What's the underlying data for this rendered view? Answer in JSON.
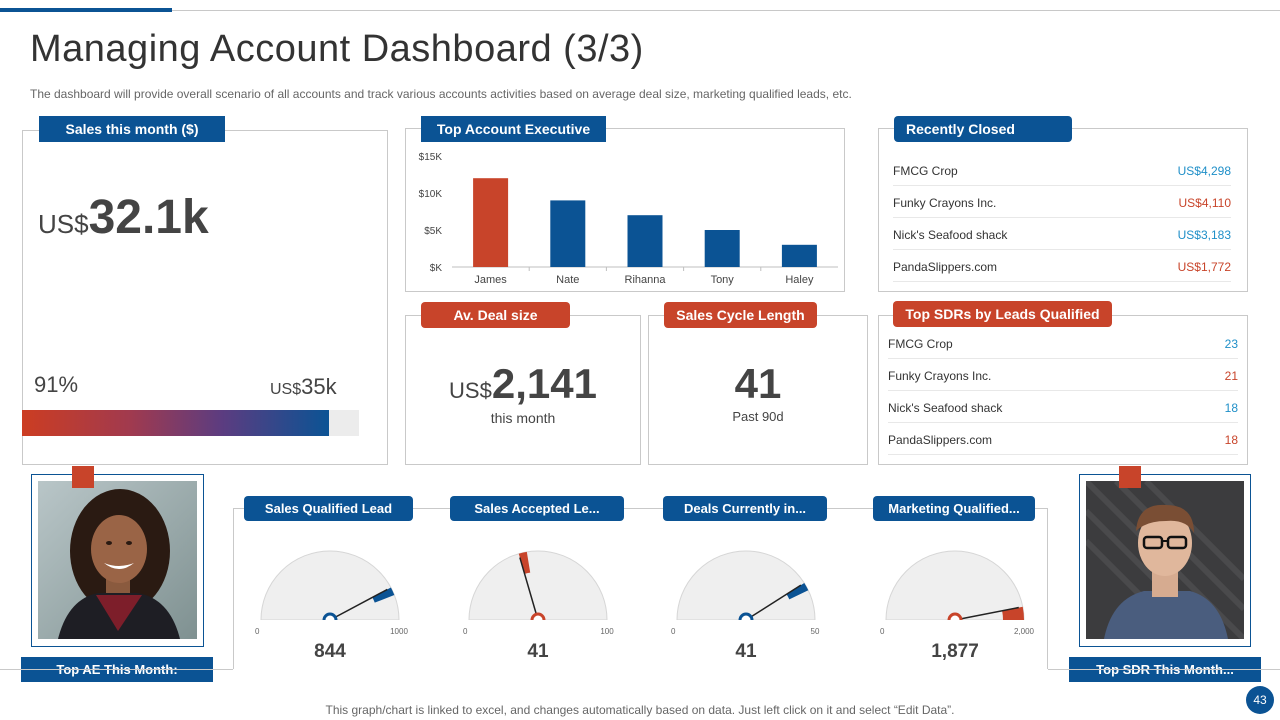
{
  "page": {
    "title": "Managing Account Dashboard (3/3)",
    "subtitle": "The dashboard  will provide  overall  scenario of all accounts and track various  accounts activities based on average  deal size, marketing qualified leads, etc.",
    "footer": "This graph/chart is linked to excel,  and changes automatically based on data. Just left click on it and select “Edit Data”.",
    "page_number": "43"
  },
  "colors": {
    "blue": "#0b5394",
    "red": "#c8442a",
    "light_blue": "#1f8fc8"
  },
  "sales_month": {
    "label": "Sales this month ($)",
    "currency": "US$",
    "amount": "32.1k",
    "percent": "91%",
    "percent_value": 91,
    "target_currency": "US$",
    "target_amount": "35k"
  },
  "top_ae": {
    "label": "Top Account Executive",
    "chart_data": {
      "type": "bar",
      "title": "Top Account Executive",
      "categories": [
        "James",
        "Nate",
        "Rihanna",
        "Tony",
        "Haley"
      ],
      "values": [
        12000,
        9000,
        7000,
        5000,
        3000
      ],
      "highlight": [
        true,
        false,
        false,
        false,
        false
      ],
      "ylim": [
        0,
        15000
      ],
      "yticks": [
        0,
        5000,
        10000,
        15000
      ],
      "ytick_labels": [
        "$K",
        "$5K",
        "$10K",
        "$15K"
      ],
      "xlabel": "",
      "ylabel": "",
      "grid": false
    }
  },
  "recently_closed": {
    "label": "Recently Closed",
    "rows": [
      {
        "name": "FMCG Crop",
        "amount": "US$4,298",
        "tone": "blue"
      },
      {
        "name": "Funky Crayons Inc.",
        "amount": "US$4,110",
        "tone": "red"
      },
      {
        "name": "Nick's Seafood shack",
        "amount": "US$3,183",
        "tone": "blue"
      },
      {
        "name": "PandaSlippers.com",
        "amount": "US$1,772",
        "tone": "red"
      }
    ]
  },
  "deal_size": {
    "label": "Av. Deal size",
    "currency": "US$",
    "value": "2,141",
    "caption": "this month"
  },
  "cycle": {
    "label": "Sales Cycle Length",
    "value": "41",
    "caption": "Past 90d"
  },
  "top_sdrs": {
    "label": "Top SDRs by Leads Qualified",
    "rows": [
      {
        "name": "FMCG Crop",
        "amount": "23",
        "tone": "blue"
      },
      {
        "name": "Funky Crayons Inc.",
        "amount": "21",
        "tone": "red"
      },
      {
        "name": "Nick's Seafood shack",
        "amount": "18",
        "tone": "blue"
      },
      {
        "name": "PandaSlippers.com",
        "amount": "18",
        "tone": "red"
      }
    ]
  },
  "gauges": [
    {
      "label": "Sales Qualified Lead",
      "min": 0,
      "max": 1000,
      "min_label": "0",
      "max_label": "1000",
      "value": 844,
      "display": "844",
      "tone": "blue"
    },
    {
      "label": "Sales Accepted Le...",
      "min": 0,
      "max": 100,
      "min_label": "0",
      "max_label": "100",
      "value": 41,
      "display": "41",
      "tone": "red"
    },
    {
      "label": "Deals Currently  in...",
      "min": 0,
      "max": 50,
      "min_label": "0",
      "max_label": "50",
      "value": 41,
      "display": "41",
      "tone": "blue"
    },
    {
      "label": "Marketing Qualified...",
      "min": 0,
      "max": 2000,
      "min_label": "0",
      "max_label": "2,000",
      "value": 1877,
      "display": "1,877",
      "tone": "red"
    }
  ],
  "top_ae_month": {
    "label": "Top AE This Month:"
  },
  "top_sdr_month": {
    "label": "Top SDR This Month..."
  }
}
